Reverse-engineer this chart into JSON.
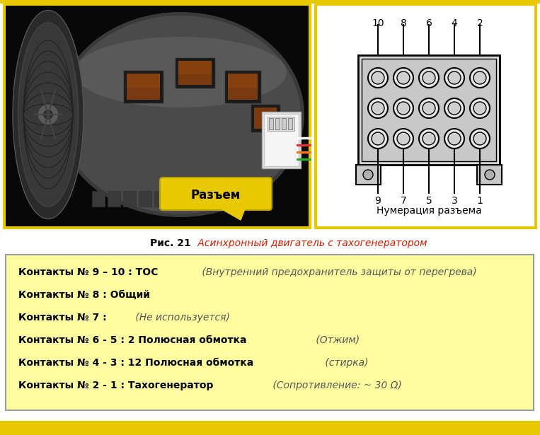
{
  "bg_color": "#ffffff",
  "yellow_color": "#e8c800",
  "motor_border_color": "#e8c800",
  "connector_border_color": "#e8c800",
  "info_box_bg": "#ffffa0",
  "info_box_border": "#999999",
  "caption_bold": "Рис. 21",
  "caption_italic": " Асинхронный двигатель с тахогенератором",
  "caption_red_color": "#cc2200",
  "caption_bold_color": "#000000",
  "lines": [
    {
      "bold": "Контакты № 9 – 10 : ТОС",
      "normal": " (Внутренний предохранитель защиты от перегрева)"
    },
    {
      "bold": "Контакты № 8 : Общий",
      "normal": ""
    },
    {
      "bold": "Контакты № 7 :",
      "normal": " (Не используется)"
    },
    {
      "bold": "Контакты № 6 - 5 : 2 Полюсная обмотка",
      "normal": " (Отжим)"
    },
    {
      "bold": "Контакты № 4 - 3 : 12 Полюсная обмотка",
      "normal": " (стирка)"
    },
    {
      "bold": "Контакты № 2 - 1 : Тахогенератор",
      "normal": " (Сопротивление: ~ 30 Ω)"
    }
  ],
  "connector_label": "Нумерация разъема",
  "razem_label": "Разъем",
  "top_numbers": [
    "10",
    "8",
    "6",
    "4",
    "2"
  ],
  "bottom_numbers": [
    "9",
    "7",
    "5",
    "3",
    "1"
  ]
}
